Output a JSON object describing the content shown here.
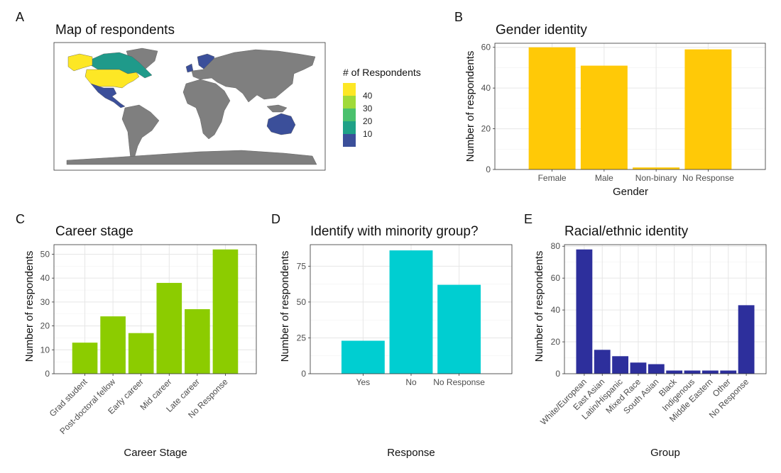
{
  "panel_letters": [
    "A",
    "B",
    "C",
    "D",
    "E"
  ],
  "map": {
    "title": "Map of respondents",
    "legend_title": "# of Respondents",
    "legend_labels": [
      "40",
      "30",
      "20",
      "10"
    ],
    "legend_colors": [
      "#fde725",
      "#a0da39",
      "#4ac16d",
      "#1fa187",
      "#3b4f9a"
    ],
    "land_color": "#7f7f7f",
    "region_colors": {
      "canada": "#1f9a8a",
      "usa": "#fde725",
      "alaska": "#fde725",
      "mexico_central_america": "#3b4f9a",
      "scandinavia_uk": "#3b4f9a",
      "australia": "#3b4f9a"
    }
  },
  "chart_data": [
    {
      "panel": "B",
      "type": "bar",
      "title": "Gender identity",
      "xlabel": "Gender",
      "ylabel": "Number of respondents",
      "categories": [
        "Female",
        "Male",
        "Non-binary",
        "No Response"
      ],
      "values": [
        60,
        51,
        1,
        59
      ],
      "ylim": [
        0,
        62
      ],
      "yticks": [
        0,
        20,
        40,
        60
      ],
      "color": "#ffc907",
      "grid": true,
      "x_label_rotation": 0
    },
    {
      "panel": "C",
      "type": "bar",
      "title": "Career stage",
      "xlabel": "Career Stage",
      "ylabel": "Number of respondents",
      "categories": [
        "Grad student",
        "Post-doctoral fellow",
        "Early career",
        "Mid career",
        "Late career",
        "No Response"
      ],
      "values": [
        13,
        24,
        17,
        38,
        27,
        52
      ],
      "ylim": [
        0,
        54
      ],
      "yticks": [
        0,
        10,
        20,
        30,
        40,
        50
      ],
      "color": "#8ccc00",
      "grid": true,
      "x_label_rotation": -45
    },
    {
      "panel": "D",
      "type": "bar",
      "title": "Identify with minority group?",
      "xlabel": "Response",
      "ylabel": "Number of respondents",
      "categories": [
        "Yes",
        "No",
        "No Response"
      ],
      "values": [
        23,
        86,
        62
      ],
      "ylim": [
        0,
        90
      ],
      "yticks": [
        0,
        25,
        50,
        75
      ],
      "color": "#00ced1",
      "grid": true,
      "x_label_rotation": 0
    },
    {
      "panel": "E",
      "type": "bar",
      "title": "Racial/ethnic identity",
      "xlabel": "Group",
      "ylabel": "Number of respondents",
      "categories": [
        "White/European",
        "East Asian",
        "Latin/Hispanic",
        "Mixed Race",
        "South Asian",
        "Black",
        "Indigenous",
        "Middle Eastern",
        "Other",
        "No Response"
      ],
      "values": [
        78,
        15,
        11,
        7,
        6,
        2,
        2,
        2,
        2,
        43
      ],
      "ylim": [
        0,
        81
      ],
      "yticks": [
        0,
        20,
        40,
        60,
        80
      ],
      "color": "#2d2f9c",
      "grid": true,
      "x_label_rotation": -45
    }
  ]
}
